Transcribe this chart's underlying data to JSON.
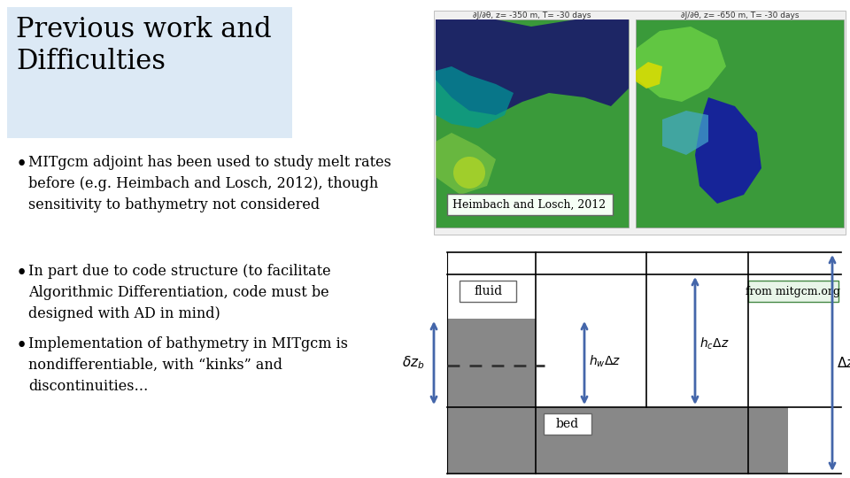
{
  "bg_color": "#ffffff",
  "title_box_color": "#dce9f5",
  "title_text": "Previous work and\nDifficulties",
  "title_fontsize": 22,
  "bullet1": "MITgcm adjoint has been used to study melt rates\nbefore (e.g. Heimbach and Losch, 2012), though\nsensitivity to bathymetry not considered",
  "bullet2": "In part due to code structure (to facilitate\nAlgorithmic Differentiation, code must be\ndesigned with AD in mind)",
  "bullet3": "Implementation of bathymetry in MITgcm is\nnondifferentiable, with “kinks” and\ndiscontinuities…",
  "bullet_fontsize": 11.5,
  "caption_heimbach": "Heimbach and Losch, 2012",
  "caption_mitgcm": "from mitgcm.org",
  "label_fluid": "fluid",
  "label_bed": "bed",
  "arrow_color": "#4466aa",
  "gray_color": "#888888",
  "fluid_label_box_color": "#ffffff",
  "mitgcm_box_color": "#e8f5e8",
  "img_title1": "∂J/∂θ, z= -350 m, T= -30 days",
  "img_title2": "∂J/∂θ, z= -650 m, T= -30 days"
}
